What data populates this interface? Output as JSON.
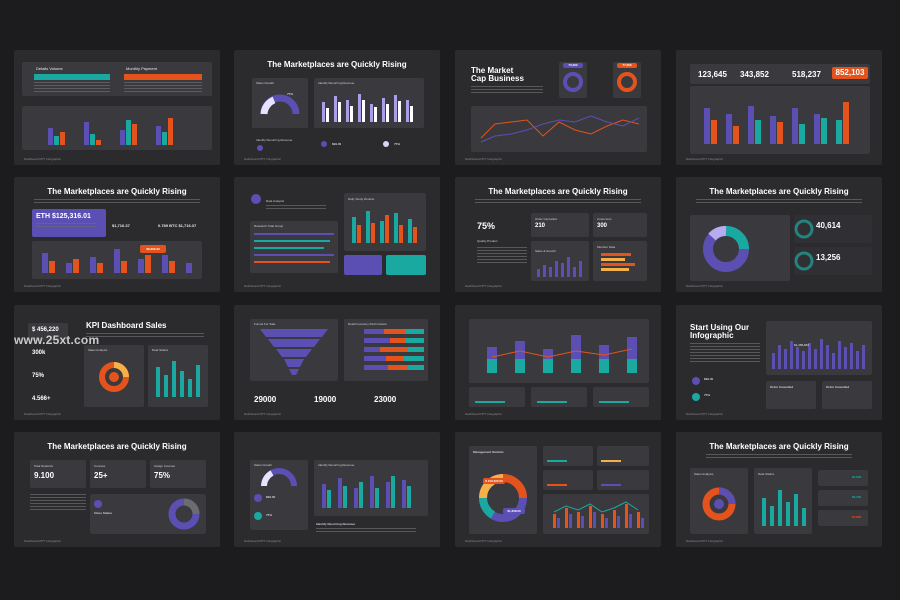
{
  "watermark": "www.25xt.com",
  "colors": {
    "bg": "#1c1c1e",
    "slide": "#2b2b2e",
    "panel": "#3a3a3e",
    "purple": "#5b4fb3",
    "teal": "#19a9a1",
    "orange": "#e4531c",
    "lavender": "#b7acf0"
  },
  "slides": [
    {
      "id": "s1",
      "footer": "Dashboard PPT Infographic",
      "labels": {
        "a": "Details Volume",
        "b": "Monthly Payment"
      }
    },
    {
      "id": "s2",
      "title": "The Marketplaces are Quickly Rising",
      "footer": "Dashboard PPT Infographic",
      "labels": {
        "sales": "Sales Growth",
        "rev": "Identify Recurring Revenue",
        "rev2": "Identify Recurring Revenue",
        "pct": "75%",
        "money": "$99.00",
        "pct2": "75%"
      }
    },
    {
      "id": "s3",
      "title_l1": "The Market",
      "title_l2": "Cap Business",
      "footer": "Dashboard PPT Infographic",
      "badges": [
        "70,000",
        "77,000"
      ]
    },
    {
      "id": "s4",
      "footer": "Dashboard PPT Infographic",
      "stats": [
        "123,645",
        "343,852",
        "518,237",
        "852,103"
      ]
    },
    {
      "id": "s5",
      "title": "The Marketplaces are Quickly Rising",
      "footer": "Dashboard PPT Infographic",
      "eth": "ETH $125,316.01",
      "values": [
        "$1,716.37",
        "0.789 BTC $1,716.37"
      ],
      "callout": "$8,369.33"
    },
    {
      "id": "s6",
      "footer": "Dashboard PPT Infographic",
      "labels": {
        "a": "Data Analysis",
        "b": "Daily Study Routine",
        "c": "Research Total Group"
      }
    },
    {
      "id": "s7",
      "title": "The Marketplaces are Quickly Rising",
      "footer": "Dashboard PPT Infographic",
      "stats": {
        "pct": "75%",
        "quality": "Quality Product",
        "cancel_label": "Order Cancelled",
        "cancel": "210",
        "cust_label": "Customers",
        "cust": "300",
        "member": "Member Data",
        "sales": "Sales & Growth"
      }
    },
    {
      "id": "s8",
      "title": "The Marketplaces are Quickly Rising",
      "footer": "Dashboard PPT Infographic",
      "stats": [
        "40,614",
        "13,256"
      ]
    },
    {
      "id": "s9",
      "title": "KPI Dashboard Sales",
      "footer": "Dashboard PPT Infographic",
      "stats": [
        "$ 456,220",
        "300k",
        "75%",
        "4.566+"
      ],
      "labels": {
        "a": "Sales Analysis",
        "b": "Data Statics"
      }
    },
    {
      "id": "s10",
      "footer": "Dashboard PPT Infographic",
      "stats": [
        "29000",
        "19000",
        "23000"
      ],
      "labels": {
        "a": "Funnel For Sale",
        "b": "Retail Inventory Performance"
      }
    },
    {
      "id": "s11",
      "footer": "Dashboard PPT Infographic"
    },
    {
      "id": "s12",
      "title_l1": "Start Using Our",
      "title_l2": "Infographic",
      "footer": "Dashboard PPT Infographic",
      "stats": {
        "money": "$99.00",
        "pct": "75%",
        "callout": "$1,450,816",
        "cancel": "Order Cancelled",
        "cancel2": "Order Cancelled"
      }
    },
    {
      "id": "s13",
      "title": "The Marketplaces are Quickly Rising",
      "footer": "Dashboard PPT Infographic",
      "stats": [
        {
          "label": "Total Students",
          "value": "9.100"
        },
        {
          "label": "Courses",
          "value": "25+"
        },
        {
          "label": "Assign Courses",
          "value": "75%"
        }
      ],
      "class": "Class Status"
    },
    {
      "id": "s14",
      "footer": "Dashboard PPT Infographic",
      "labels": {
        "sales": "Sales Growth",
        "rev": "Identify Recurring Revenue",
        "money": "$99.00",
        "pct": "75%",
        "rev2": "Identify Recurring Revenue"
      }
    },
    {
      "id": "s15",
      "footer": "Dashboard PPT Infographic",
      "labels": {
        "title": "Management Statistic",
        "a": "$ 100,520.00",
        "b": "$1,308.00"
      }
    },
    {
      "id": "s16",
      "title": "The Marketplaces are Quickly Rising",
      "footer": "Dashboard PPT Infographic",
      "labels": {
        "a": "Sales Analysis",
        "b": "Data Statics",
        "v1": "$2,800",
        "v2": "$6,200",
        "v3": "$4,800"
      }
    }
  ]
}
